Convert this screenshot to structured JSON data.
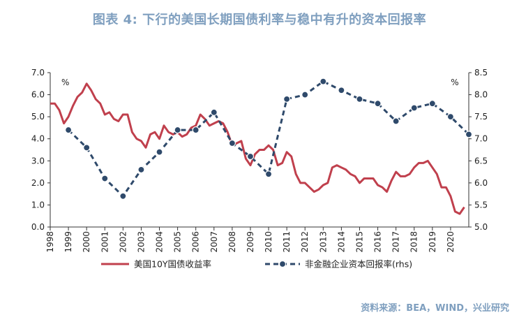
{
  "title": "图表 4:  下行的美国长期国债利率与稳中有升的资本回报率",
  "source": "资料来源：BEA，WIND，兴业研究",
  "chart_data": {
    "type": "line",
    "left_unit": "%",
    "right_unit": "%",
    "ylim_left": [
      0.0,
      7.0
    ],
    "ylim_right": [
      5.0,
      8.5
    ],
    "left_ticks": [
      "0.0",
      "1.0",
      "2.0",
      "3.0",
      "4.0",
      "5.0",
      "6.0",
      "7.0"
    ],
    "right_ticks": [
      "5.0",
      "5.5",
      "6.0",
      "6.5",
      "7.0",
      "7.5",
      "8.0",
      "8.5"
    ],
    "x_tick_labels": [
      "1998",
      "1999",
      "2000",
      "2001",
      "2002",
      "2003",
      "2004",
      "2005",
      "2006",
      "2007",
      "2008",
      "2009",
      "2010",
      "2011",
      "2012",
      "2013",
      "2014",
      "2015",
      "2016",
      "2017",
      "2018",
      "2019",
      "2020"
    ],
    "xlim": [
      1998.0,
      2021.0
    ],
    "grid": false,
    "legend_position": "bottom",
    "colors": {
      "treasury": "#c0404d",
      "capital_return": "#2f4a6b"
    },
    "series": [
      {
        "name": "美国10Y国债收益率",
        "axis": "left",
        "x": [
          1998.0,
          1998.25,
          1998.5,
          1998.75,
          1999.0,
          1999.25,
          1999.5,
          1999.75,
          2000.0,
          2000.25,
          2000.5,
          2000.75,
          2001.0,
          2001.25,
          2001.5,
          2001.75,
          2002.0,
          2002.25,
          2002.5,
          2002.75,
          2003.0,
          2003.25,
          2003.5,
          2003.75,
          2004.0,
          2004.25,
          2004.5,
          2004.75,
          2005.0,
          2005.25,
          2005.5,
          2005.75,
          2006.0,
          2006.25,
          2006.5,
          2006.75,
          2007.0,
          2007.25,
          2007.5,
          2007.75,
          2008.0,
          2008.25,
          2008.5,
          2008.75,
          2009.0,
          2009.25,
          2009.5,
          2009.75,
          2010.0,
          2010.25,
          2010.5,
          2010.75,
          2011.0,
          2011.25,
          2011.5,
          2011.75,
          2012.0,
          2012.25,
          2012.5,
          2012.75,
          2013.0,
          2013.25,
          2013.5,
          2013.75,
          2014.0,
          2014.25,
          2014.5,
          2014.75,
          2015.0,
          2015.25,
          2015.5,
          2015.75,
          2016.0,
          2016.25,
          2016.5,
          2016.75,
          2017.0,
          2017.25,
          2017.5,
          2017.75,
          2018.0,
          2018.25,
          2018.5,
          2018.75,
          2019.0,
          2019.25,
          2019.5,
          2019.75,
          2020.0,
          2020.25,
          2020.5,
          2020.75
        ],
        "values": [
          5.6,
          5.6,
          5.3,
          4.7,
          5.0,
          5.5,
          5.9,
          6.1,
          6.5,
          6.2,
          5.8,
          5.6,
          5.1,
          5.2,
          4.9,
          4.8,
          5.1,
          5.1,
          4.3,
          4.0,
          3.9,
          3.6,
          4.2,
          4.3,
          4.0,
          4.6,
          4.3,
          4.2,
          4.3,
          4.1,
          4.2,
          4.5,
          4.6,
          5.1,
          4.9,
          4.6,
          4.7,
          4.8,
          4.7,
          4.3,
          3.7,
          3.8,
          3.9,
          3.1,
          2.8,
          3.3,
          3.5,
          3.5,
          3.7,
          3.5,
          2.8,
          2.9,
          3.4,
          3.2,
          2.4,
          2.0,
          2.0,
          1.8,
          1.6,
          1.7,
          1.9,
          2.0,
          2.7,
          2.8,
          2.7,
          2.6,
          2.4,
          2.3,
          2.0,
          2.2,
          2.2,
          2.2,
          1.9,
          1.8,
          1.6,
          2.1,
          2.5,
          2.3,
          2.3,
          2.4,
          2.7,
          2.9,
          2.9,
          3.0,
          2.7,
          2.4,
          1.8,
          1.8,
          1.4,
          0.7,
          0.6,
          0.9
        ]
      },
      {
        "name": "非金融企业资本回报率(rhs)",
        "axis": "right",
        "x": [
          1999,
          2000,
          2001,
          2002,
          2003,
          2004,
          2005,
          2006,
          2007,
          2008,
          2009,
          2010,
          2011,
          2012,
          2013,
          2014,
          2015,
          2016,
          2017,
          2018,
          2019,
          2020,
          2021
        ],
        "values": [
          7.2,
          6.8,
          6.1,
          5.7,
          6.3,
          6.7,
          7.2,
          7.2,
          7.6,
          6.9,
          6.6,
          6.2,
          7.9,
          8.0,
          8.3,
          8.1,
          7.9,
          7.8,
          7.4,
          7.7,
          7.8,
          7.5,
          7.1
        ]
      }
    ]
  }
}
